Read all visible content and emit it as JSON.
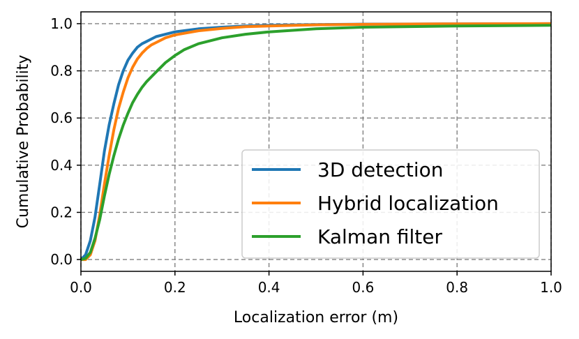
{
  "chart_data": {
    "type": "line",
    "title": "",
    "xlabel": "Localization error (m)",
    "ylabel": "Cumulative Probability",
    "xlim": [
      0.0,
      1.0
    ],
    "ylim": [
      -0.05,
      1.05
    ],
    "xticks": [
      0.0,
      0.2,
      0.4,
      0.6,
      0.8,
      1.0
    ],
    "xtick_labels": [
      "0.0",
      "0.2",
      "0.4",
      "0.6",
      "0.8",
      "1.0"
    ],
    "yticks": [
      0.0,
      0.2,
      0.4,
      0.6,
      0.8,
      1.0
    ],
    "ytick_labels": [
      "0.0",
      "0.2",
      "0.4",
      "0.6",
      "0.8",
      "1.0"
    ],
    "grid": true,
    "legend_position": "bottom-right",
    "series": [
      {
        "name": "3D detection",
        "color": "#1f77b4",
        "x": [
          0.0,
          0.01,
          0.02,
          0.03,
          0.04,
          0.05,
          0.06,
          0.07,
          0.08,
          0.09,
          0.1,
          0.11,
          0.12,
          0.13,
          0.14,
          0.15,
          0.16,
          0.18,
          0.2,
          0.25,
          0.3,
          0.35,
          0.4,
          0.5,
          0.6,
          0.8,
          1.0
        ],
        "y": [
          0.0,
          0.02,
          0.08,
          0.18,
          0.32,
          0.46,
          0.57,
          0.66,
          0.74,
          0.8,
          0.845,
          0.875,
          0.9,
          0.915,
          0.925,
          0.935,
          0.945,
          0.955,
          0.965,
          0.978,
          0.985,
          0.99,
          0.993,
          0.996,
          0.998,
          0.999,
          1.0
        ]
      },
      {
        "name": "Hybrid localization",
        "color": "#ff7f0e",
        "x": [
          0.0,
          0.01,
          0.02,
          0.03,
          0.04,
          0.05,
          0.06,
          0.07,
          0.08,
          0.09,
          0.1,
          0.11,
          0.12,
          0.13,
          0.14,
          0.15,
          0.16,
          0.18,
          0.2,
          0.25,
          0.3,
          0.35,
          0.4,
          0.5,
          0.6,
          0.8,
          1.0
        ],
        "y": [
          0.0,
          0.0,
          0.02,
          0.08,
          0.19,
          0.32,
          0.44,
          0.55,
          0.64,
          0.71,
          0.77,
          0.815,
          0.85,
          0.875,
          0.895,
          0.91,
          0.92,
          0.94,
          0.952,
          0.97,
          0.98,
          0.987,
          0.99,
          0.995,
          0.997,
          0.999,
          1.0
        ]
      },
      {
        "name": "Kalman filter",
        "color": "#2ca02c",
        "x": [
          0.0,
          0.01,
          0.02,
          0.03,
          0.04,
          0.05,
          0.06,
          0.07,
          0.08,
          0.09,
          0.1,
          0.11,
          0.12,
          0.13,
          0.14,
          0.15,
          0.16,
          0.18,
          0.2,
          0.22,
          0.25,
          0.3,
          0.35,
          0.4,
          0.5,
          0.6,
          0.8,
          1.0
        ],
        "y": [
          0.0,
          0.005,
          0.03,
          0.09,
          0.17,
          0.27,
          0.36,
          0.44,
          0.51,
          0.57,
          0.62,
          0.665,
          0.7,
          0.73,
          0.755,
          0.775,
          0.795,
          0.835,
          0.865,
          0.89,
          0.915,
          0.94,
          0.955,
          0.965,
          0.978,
          0.985,
          0.99,
          0.993
        ]
      }
    ]
  }
}
